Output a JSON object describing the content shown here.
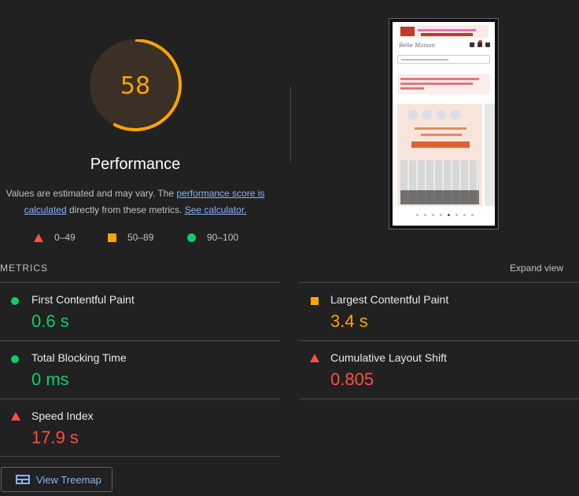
{
  "gauge": {
    "score": "58",
    "score_value": 0.58,
    "title": "Performance",
    "color": "#ffa400"
  },
  "description": {
    "prefix": "Values are estimated and may vary. The ",
    "link1": "performance score is calculated",
    "middle": " directly from these metrics. ",
    "link2": "See calculator."
  },
  "legend": [
    {
      "icon": "red-triangle-icon",
      "range": "0–49",
      "color": "#ff4e42"
    },
    {
      "icon": "orange-square-icon",
      "range": "50–89",
      "color": "#ffa400"
    },
    {
      "icon": "green-circle-icon",
      "range": "90–100",
      "color": "#0cce6b"
    }
  ],
  "metrics_section": {
    "label": "METRICS",
    "expand_label": "Expand view"
  },
  "metrics": [
    {
      "name": "First Contentful Paint",
      "value": "0.6 s",
      "status": "pass",
      "icon": "green-circle-icon"
    },
    {
      "name": "Largest Contentful Paint",
      "value": "3.4 s",
      "status": "average",
      "icon": "orange-square-icon"
    },
    {
      "name": "Total Blocking Time",
      "value": "0 ms",
      "status": "pass",
      "icon": "green-circle-icon"
    },
    {
      "name": "Cumulative Layout Shift",
      "value": "0.805",
      "status": "fail",
      "icon": "red-triangle-icon"
    },
    {
      "name": "Speed Index",
      "value": "17.9 s",
      "status": "fail",
      "icon": "red-triangle-icon"
    }
  ],
  "screenshot": {
    "logo_text": "Belle Maison"
  },
  "treemap_button": {
    "label": "View Treemap"
  },
  "colors": {
    "pass": "#0cce6b",
    "average": "#ffa400",
    "fail": "#ff4e42",
    "link": "#8ab4f8",
    "background": "#212121"
  }
}
